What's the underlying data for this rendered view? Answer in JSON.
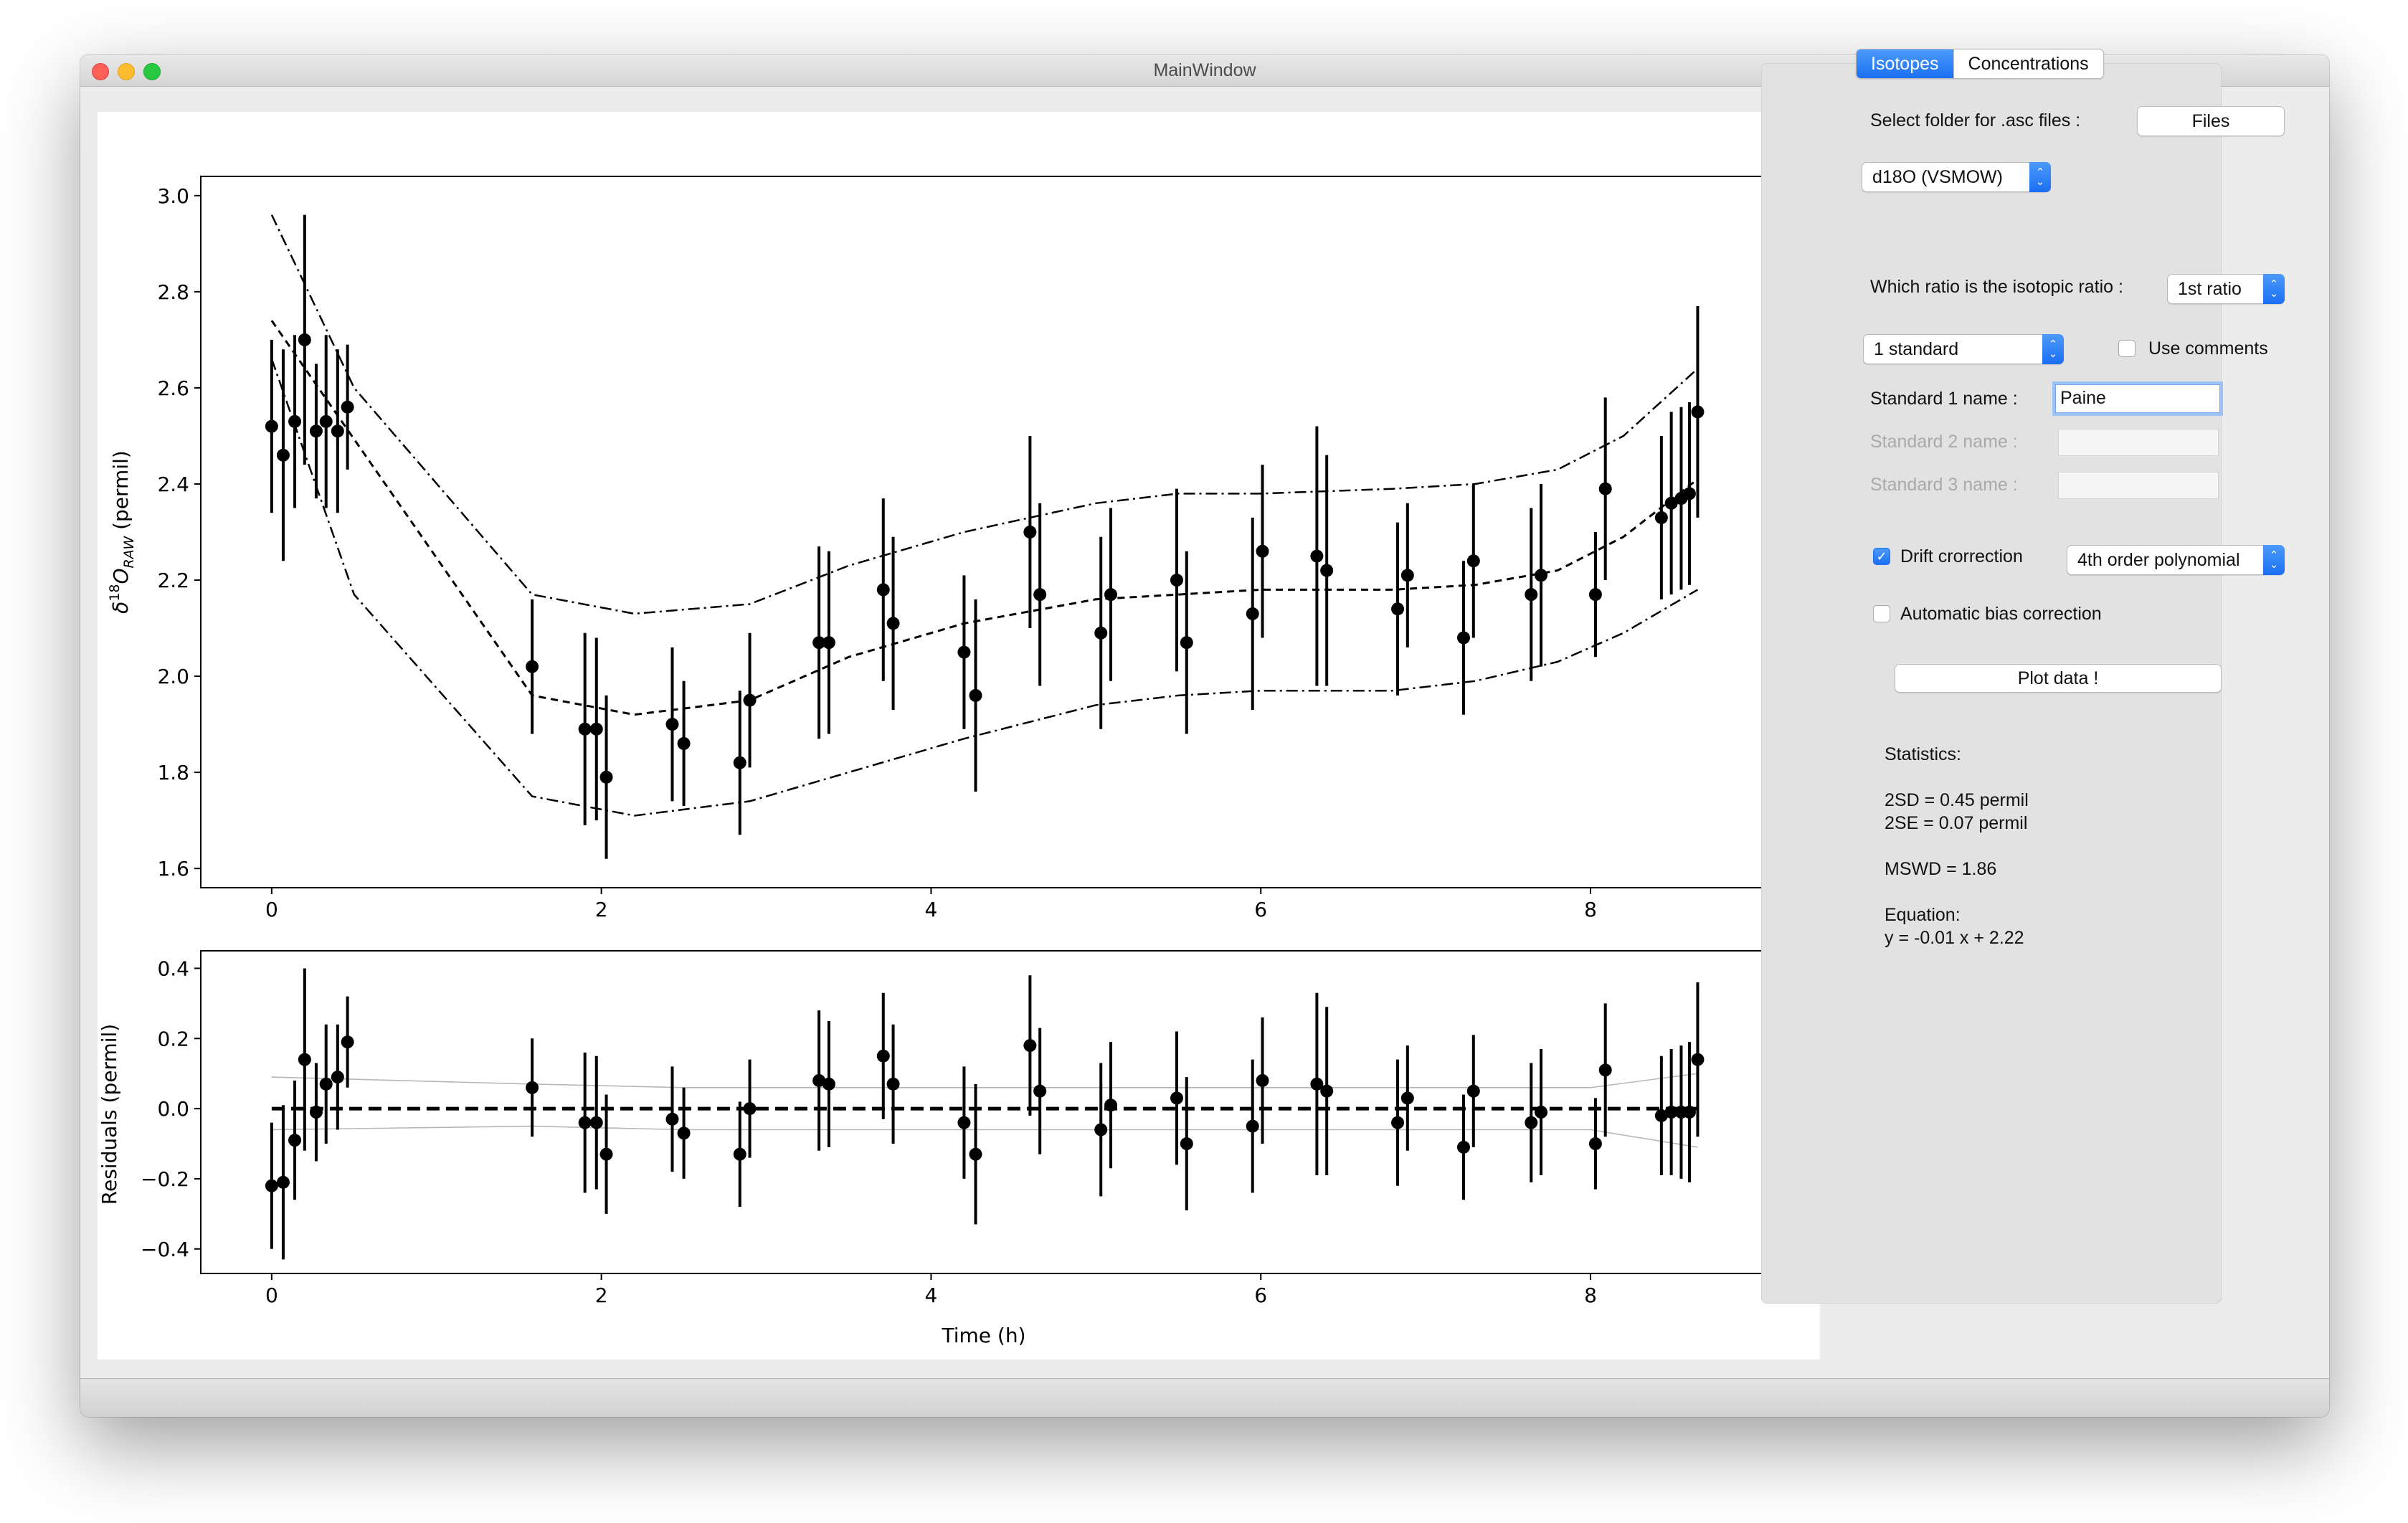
{
  "window": {
    "title": "MainWindow"
  },
  "tabs": [
    {
      "label": "Isotopes",
      "active": true
    },
    {
      "label": "Concentrations",
      "active": false
    }
  ],
  "panel": {
    "select_folder_label": "Select folder for .asc files :",
    "files_button": "Files",
    "isotope_select": "d18O (VSMOW)",
    "ratio_label": "Which ratio is the isotopic ratio :",
    "ratio_select": "1st ratio",
    "standards_select": "1 standard",
    "use_comments_label": "Use comments",
    "use_comments_checked": false,
    "standard1_label": "Standard 1 name :",
    "standard1_value": "Paine",
    "standard2_label": "Standard 2 name :",
    "standard2_value": "",
    "standard3_label": "Standard 3 name :",
    "standard3_value": "",
    "drift_label": "Drift crorrection",
    "drift_checked": true,
    "drift_select": "4th order polynomial",
    "bias_label": "Automatic bias correction",
    "bias_checked": false,
    "plot_button": "Plot data !",
    "stats": {
      "heading": "Statistics:",
      "sd2": "2SD = 0.45 permil",
      "se2": "2SE = 0.07 permil",
      "mswd": "MSWD = 1.86",
      "eq_heading": "Equation:",
      "equation": "y = -0.01 x + 2.22"
    }
  },
  "chart_data": [
    {
      "type": "scatter",
      "title": "",
      "xlabel": "",
      "ylabel": "δ18O_RAW (permil)",
      "xlim": [
        -0.43,
        9.07
      ],
      "ylim": [
        1.56,
        3.04
      ],
      "xticks": [
        "0",
        "2",
        "4",
        "6",
        "8"
      ],
      "yticks": [
        "1.6",
        "1.8",
        "2.0",
        "2.2",
        "2.4",
        "2.6",
        "2.8",
        "3.0"
      ],
      "series": [
        {
          "style": "points-with-errorbars",
          "x": [
            0,
            0.07,
            0.14,
            0.2,
            0.27,
            0.33,
            0.4,
            0.46,
            1.58,
            1.9,
            1.97,
            2.03,
            2.43,
            2.5,
            2.84,
            2.9,
            3.32,
            3.38,
            3.71,
            3.77,
            4.2,
            4.27,
            4.6,
            4.66,
            5.03,
            5.09,
            5.49,
            5.55,
            5.95,
            6.01,
            6.34,
            6.4,
            6.83,
            6.89,
            7.23,
            7.29,
            7.64,
            7.7,
            8.03,
            8.09,
            8.43,
            8.49,
            8.55,
            8.6,
            8.65
          ],
          "y": [
            2.52,
            2.46,
            2.53,
            2.7,
            2.51,
            2.53,
            2.51,
            2.56,
            2.02,
            1.89,
            1.89,
            1.79,
            1.9,
            1.86,
            1.82,
            1.95,
            2.07,
            2.07,
            2.18,
            2.11,
            2.05,
            1.96,
            2.3,
            2.17,
            2.09,
            2.17,
            2.2,
            2.07,
            2.13,
            2.26,
            2.25,
            2.22,
            2.14,
            2.21,
            2.08,
            2.24,
            2.17,
            2.21,
            2.17,
            2.39,
            2.33,
            2.36,
            2.37,
            2.38,
            2.55
          ],
          "yerr": [
            0.18,
            0.22,
            0.18,
            0.26,
            0.14,
            0.18,
            0.17,
            0.13,
            0.14,
            0.2,
            0.19,
            0.17,
            0.16,
            0.13,
            0.15,
            0.14,
            0.2,
            0.19,
            0.19,
            0.18,
            0.16,
            0.2,
            0.2,
            0.19,
            0.2,
            0.18,
            0.19,
            0.19,
            0.2,
            0.18,
            0.27,
            0.24,
            0.18,
            0.15,
            0.16,
            0.16,
            0.18,
            0.19,
            0.13,
            0.19,
            0.17,
            0.19,
            0.19,
            0.19,
            0.22
          ]
        },
        {
          "style": "dashed-fit",
          "x": [
            0,
            1.58,
            2.2,
            2.9,
            3.5,
            4.2,
            5,
            5.5,
            6,
            6.8,
            7.3,
            7.8,
            8.2,
            8.65
          ],
          "y": [
            2.74,
            1.96,
            1.92,
            1.95,
            2.04,
            2.11,
            2.16,
            2.17,
            2.18,
            2.18,
            2.19,
            2.22,
            2.29,
            2.41
          ]
        },
        {
          "style": "dashdot-band",
          "x": [
            0,
            0.5,
            1.58,
            2.2,
            2.9,
            3.5,
            4.2,
            5,
            5.5,
            6,
            6.8,
            7.3,
            7.8,
            8.2,
            8.65
          ],
          "y": [
            2.96,
            2.6,
            2.17,
            2.13,
            2.15,
            2.23,
            2.3,
            2.36,
            2.38,
            2.38,
            2.39,
            2.4,
            2.43,
            2.5,
            2.64
          ]
        },
        {
          "style": "dashdot-band",
          "x": [
            0,
            0.5,
            1.58,
            2.2,
            2.9,
            3.5,
            4.2,
            5,
            5.5,
            6,
            6.8,
            7.3,
            7.8,
            8.2,
            8.65
          ],
          "y": [
            2.66,
            2.17,
            1.75,
            1.71,
            1.74,
            1.8,
            1.87,
            1.94,
            1.96,
            1.97,
            1.97,
            1.99,
            2.03,
            2.09,
            2.18
          ]
        }
      ]
    },
    {
      "type": "scatter",
      "title": "",
      "xlabel": "Time (h)",
      "ylabel": "Residuals (permil)",
      "xlim": [
        -0.43,
        9.07
      ],
      "ylim": [
        -0.47,
        0.45
      ],
      "xticks": [
        "0",
        "2",
        "4",
        "6",
        "8"
      ],
      "yticks": [
        "−0.4",
        "−0.2",
        "0.0",
        "0.2",
        "0.4"
      ],
      "series": [
        {
          "style": "points-with-errorbars",
          "x": [
            0,
            0.07,
            0.14,
            0.2,
            0.27,
            0.33,
            0.4,
            0.46,
            1.58,
            1.9,
            1.97,
            2.03,
            2.43,
            2.5,
            2.84,
            2.9,
            3.32,
            3.38,
            3.71,
            3.77,
            4.2,
            4.27,
            4.6,
            4.66,
            5.03,
            5.09,
            5.49,
            5.55,
            5.95,
            6.01,
            6.34,
            6.4,
            6.83,
            6.89,
            7.23,
            7.29,
            7.64,
            7.7,
            8.03,
            8.09,
            8.43,
            8.49,
            8.55,
            8.6,
            8.65
          ],
          "y": [
            -0.22,
            -0.21,
            -0.09,
            0.14,
            -0.01,
            0.07,
            0.09,
            0.19,
            0.06,
            -0.04,
            -0.04,
            -0.13,
            -0.03,
            -0.07,
            -0.13,
            0,
            0.08,
            0.07,
            0.15,
            0.07,
            -0.04,
            -0.13,
            0.18,
            0.05,
            -0.06,
            0.01,
            0.03,
            -0.1,
            -0.05,
            0.08,
            0.07,
            0.05,
            -0.04,
            0.03,
            -0.11,
            0.05,
            -0.04,
            -0.01,
            -0.1,
            0.11,
            -0.02,
            -0.01,
            -0.01,
            -0.01,
            0.14
          ],
          "yerr": [
            0.18,
            0.22,
            0.17,
            0.26,
            0.14,
            0.17,
            0.15,
            0.13,
            0.14,
            0.2,
            0.19,
            0.17,
            0.15,
            0.13,
            0.15,
            0.14,
            0.2,
            0.18,
            0.18,
            0.17,
            0.16,
            0.2,
            0.2,
            0.18,
            0.19,
            0.18,
            0.19,
            0.19,
            0.19,
            0.18,
            0.26,
            0.24,
            0.18,
            0.15,
            0.15,
            0.16,
            0.17,
            0.18,
            0.13,
            0.19,
            0.17,
            0.18,
            0.19,
            0.2,
            0.22
          ]
        },
        {
          "style": "zero-line",
          "x": [
            0,
            8.65
          ],
          "y": [
            0,
            0
          ]
        },
        {
          "style": "light-band",
          "x": [
            0,
            1.58,
            2.5,
            4,
            5,
            6,
            7,
            8,
            8.65
          ],
          "y": [
            0.09,
            0.07,
            0.06,
            0.06,
            0.06,
            0.06,
            0.06,
            0.06,
            0.1
          ]
        },
        {
          "style": "light-band",
          "x": [
            0,
            1.58,
            2.5,
            4,
            5,
            6,
            7,
            8,
            8.65
          ],
          "y": [
            -0.06,
            -0.05,
            -0.06,
            -0.06,
            -0.06,
            -0.06,
            -0.06,
            -0.06,
            -0.11
          ]
        }
      ]
    }
  ]
}
